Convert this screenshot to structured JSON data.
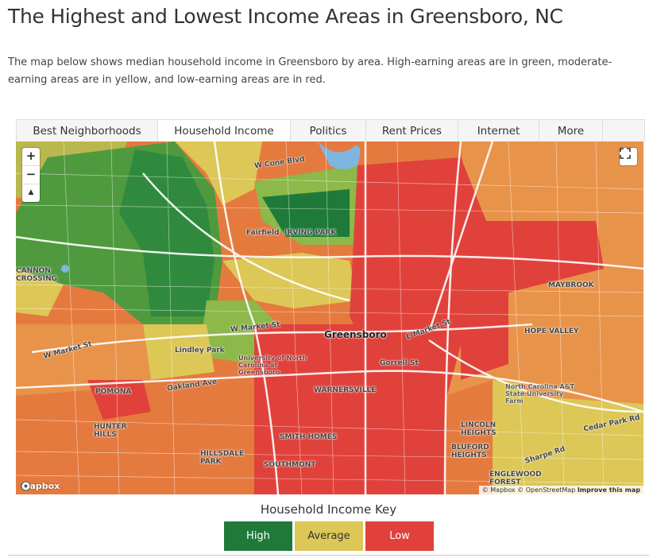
{
  "page": {
    "title": "The Highest and Lowest Income Areas in Greensboro, NC",
    "description": "The map below shows median household income in Greensboro by area. High-earning areas are in green, moderate-earning areas are in yellow, and low-earning areas are in red."
  },
  "tabs": [
    {
      "label": "Best Neighborhoods",
      "active": false
    },
    {
      "label": "Household Income",
      "active": true
    },
    {
      "label": "Politics",
      "active": false
    },
    {
      "label": "Rent Prices",
      "active": false
    },
    {
      "label": "Internet",
      "active": false
    },
    {
      "label": "More",
      "active": false
    }
  ],
  "map": {
    "zoom_in": "+",
    "zoom_out": "−",
    "compass": "▲",
    "logo": "mapbox",
    "attribution": {
      "mapbox": "© Mapbox",
      "osm": "© OpenStreetMap",
      "improve": "Improve this map"
    },
    "labels": {
      "city": "Greensboro",
      "fairfield": "Fairfield",
      "irving_park": "IRVING PARK",
      "cannon_crossing": "CANNON CROSSING",
      "lindley_park": "Lindley Park",
      "pomona": "POMONA",
      "hunter_hills": "HUNTER HILLS",
      "hillsdale_park": "HILLSDALE PARK",
      "southmont": "SOUTHMONT",
      "smith_homes": "SMITH HOMES",
      "warnersville": "WARNERSVILLE",
      "lincoln_heights": "LINCOLN HEIGHTS",
      "bluford_heights": "BLUFORD HEIGHTS",
      "englewood_forest": "ENGLEWOOD FOREST",
      "maybrook": "MAYBROOK",
      "hope_valley": "HOPE VALLEY",
      "w_cone_blvd": "W Cone Blvd",
      "w_market_st": "W Market St",
      "w_market_st2": "W Market St",
      "e_market_st": "E Market St",
      "gorrell_st": "Gorrell St",
      "oakland_ave": "Oakland Ave",
      "sharpe_rd": "Sharpe Rd",
      "cedar_park_rd": "Cedar Park Rd",
      "nc_state_farm": "North Carolina A&T State University Farm",
      "uncg": "University of North Carolina at Greensboro"
    },
    "colors": {
      "high": "#1f7a3a",
      "high_mid": "#4f9a3e",
      "mid_high": "#8db84a",
      "average": "#dcc757",
      "mid_low": "#e8a24a",
      "low_mid": "#e57a3f",
      "low": "#e0423b",
      "water": "#7fb6e0"
    }
  },
  "key": {
    "title": "Household Income Key",
    "items": [
      {
        "label": "High",
        "bg": "#1f7a3a",
        "fg": "#ffffff"
      },
      {
        "label": "Average",
        "bg": "#dcc757",
        "fg": "#333333"
      },
      {
        "label": "Low",
        "bg": "#e0423b",
        "fg": "#ffffff"
      }
    ]
  }
}
